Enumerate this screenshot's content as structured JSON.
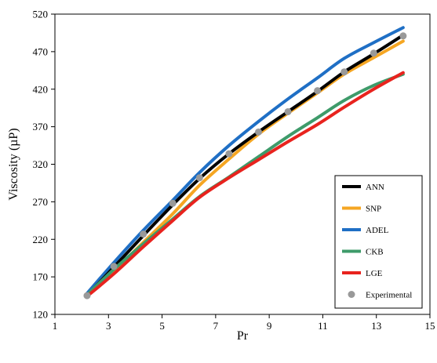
{
  "chart_data": {
    "type": "line",
    "title": "",
    "xlabel": "Pr",
    "ylabel": "Viscosity (µP)",
    "xlim": [
      1,
      15
    ],
    "ylim": [
      120,
      520
    ],
    "xticks": [
      1,
      3,
      5,
      7,
      9,
      11,
      13,
      15
    ],
    "yticks": [
      120,
      170,
      220,
      270,
      320,
      370,
      420,
      470,
      520
    ],
    "grid": false,
    "legend_position": "bottom-right",
    "series": [
      {
        "name": "ANN",
        "color": "#000000",
        "style": "line",
        "x": [
          2.2,
          3.2,
          4.3,
          5.4,
          6.4,
          7.5,
          8.6,
          9.7,
          10.8,
          11.8,
          12.9,
          14.0
        ],
        "y": [
          145,
          183,
          225,
          266,
          301,
          334,
          363,
          390,
          417,
          443,
          467,
          492
        ]
      },
      {
        "name": "SNP",
        "color": "#F5A623",
        "style": "line",
        "x": [
          2.2,
          3.2,
          4.3,
          5.4,
          6.4,
          7.5,
          8.6,
          9.7,
          10.8,
          11.8,
          12.9,
          14.0
        ],
        "y": [
          145,
          178,
          216,
          254,
          292,
          327,
          360,
          388,
          415,
          440,
          462,
          484
        ]
      },
      {
        "name": "ADEL",
        "color": "#1F6FC5",
        "style": "line",
        "x": [
          2.2,
          3.2,
          4.3,
          5.4,
          6.4,
          7.5,
          8.6,
          9.7,
          10.8,
          11.8,
          12.9,
          14.0
        ],
        "y": [
          148,
          189,
          232,
          272,
          309,
          345,
          377,
          407,
          435,
          461,
          482,
          502
        ]
      },
      {
        "name": "CKB",
        "color": "#3E9B6A",
        "style": "line",
        "x": [
          2.2,
          3.2,
          4.3,
          5.4,
          6.4,
          7.5,
          8.6,
          9.7,
          10.8,
          11.8,
          12.9,
          14.0
        ],
        "y": [
          146,
          180,
          214,
          247,
          277,
          303,
          330,
          357,
          382,
          405,
          425,
          440
        ]
      },
      {
        "name": "LGE",
        "color": "#E8231E",
        "style": "line",
        "x": [
          2.2,
          3.2,
          4.3,
          5.4,
          6.4,
          7.5,
          8.6,
          9.7,
          10.8,
          11.8,
          12.9,
          14.0
        ],
        "y": [
          144,
          174,
          210,
          245,
          276,
          302,
          326,
          350,
          373,
          396,
          420,
          442
        ]
      },
      {
        "name": "Experimental",
        "color": "#999999",
        "style": "marker",
        "x": [
          2.2,
          3.2,
          4.3,
          5.4,
          6.4,
          7.5,
          8.6,
          9.7,
          10.8,
          11.8,
          12.9,
          14.0
        ],
        "y": [
          145,
          184,
          227,
          268,
          302,
          334,
          363,
          390,
          418,
          443,
          468,
          491
        ]
      }
    ]
  }
}
